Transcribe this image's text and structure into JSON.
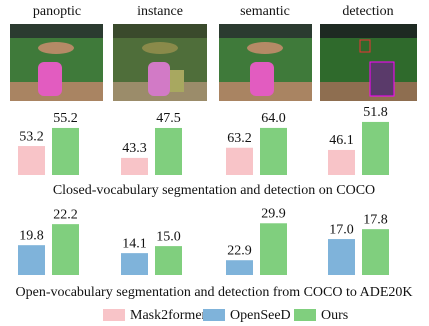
{
  "panels": [
    "panoptic",
    "instance",
    "semantic",
    "detection"
  ],
  "chart_data": [
    {
      "type": "bar",
      "title": "Closed-vocabulary segmentation and detection on COCO",
      "categories": [
        null,
        null,
        null,
        null
      ],
      "ylims": [
        [
          50,
          56.3
        ],
        [
          40.9,
          48.9
        ],
        [
          62.1,
          64.4
        ],
        [
          41,
          52.6
        ]
      ],
      "series": [
        {
          "name": "Mask2former",
          "color": "#f8c4c8",
          "values": [
            53.2,
            43.3,
            63.2,
            46.1
          ],
          "value_labels": [
            "53.2",
            "43.3",
            "63.2",
            "46.1"
          ]
        },
        {
          "name": "Ours",
          "color": "#80cf7e",
          "values": [
            55.2,
            47.5,
            64.0,
            51.8
          ],
          "value_labels": [
            "55.2",
            "47.5",
            "64.0",
            "51.8"
          ]
        }
      ]
    },
    {
      "type": "bar",
      "title": "Open-vocabulary segmentation and detection from COCO to ADE20K",
      "categories": [
        null,
        null,
        null,
        null
      ],
      "ylims": [
        [
          16.4,
          22.9
        ],
        [
          11.3,
          18.6
        ],
        [
          20.1,
          30.9
        ],
        [
          14.1,
          18.7
        ]
      ],
      "series": [
        {
          "name": "OpenSeeD",
          "color": "#7fb3da",
          "values": [
            19.8,
            14.1,
            22.9,
            17.0
          ],
          "value_labels": [
            "19.8",
            "14.1",
            "22.9",
            "17.0"
          ]
        },
        {
          "name": "Ours",
          "color": "#80cf7e",
          "values": [
            22.2,
            15.0,
            29.9,
            17.8
          ],
          "value_labels": [
            "22.2",
            "15.0",
            "29.9",
            "17.8"
          ]
        }
      ]
    }
  ]
}
